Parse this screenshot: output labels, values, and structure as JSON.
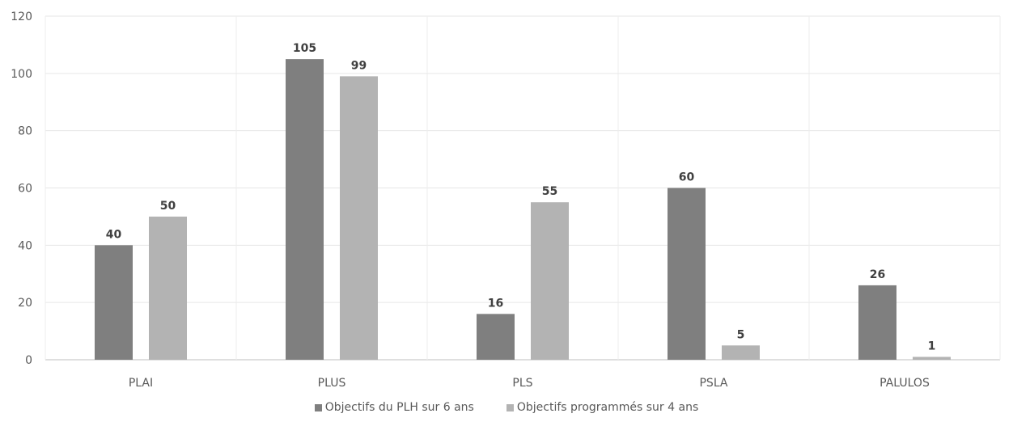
{
  "chart_data": {
    "type": "bar",
    "categories": [
      "PLAI",
      "PLUS",
      "PLS",
      "PSLA",
      "PALULOS"
    ],
    "series": [
      {
        "name": "Objectifs du PLH sur 6 ans",
        "values": [
          40,
          105,
          16,
          60,
          26
        ],
        "color": "#7f7f7f"
      },
      {
        "name": "Objectifs programmés sur 4 ans",
        "values": [
          50,
          99,
          55,
          5,
          1
        ],
        "color": "#b3b3b3"
      }
    ],
    "y_ticks": [
      "0",
      "20",
      "40",
      "60",
      "80",
      "100",
      "120"
    ],
    "ylim": [
      0,
      120
    ],
    "grid": true,
    "legend_position": "bottom"
  }
}
